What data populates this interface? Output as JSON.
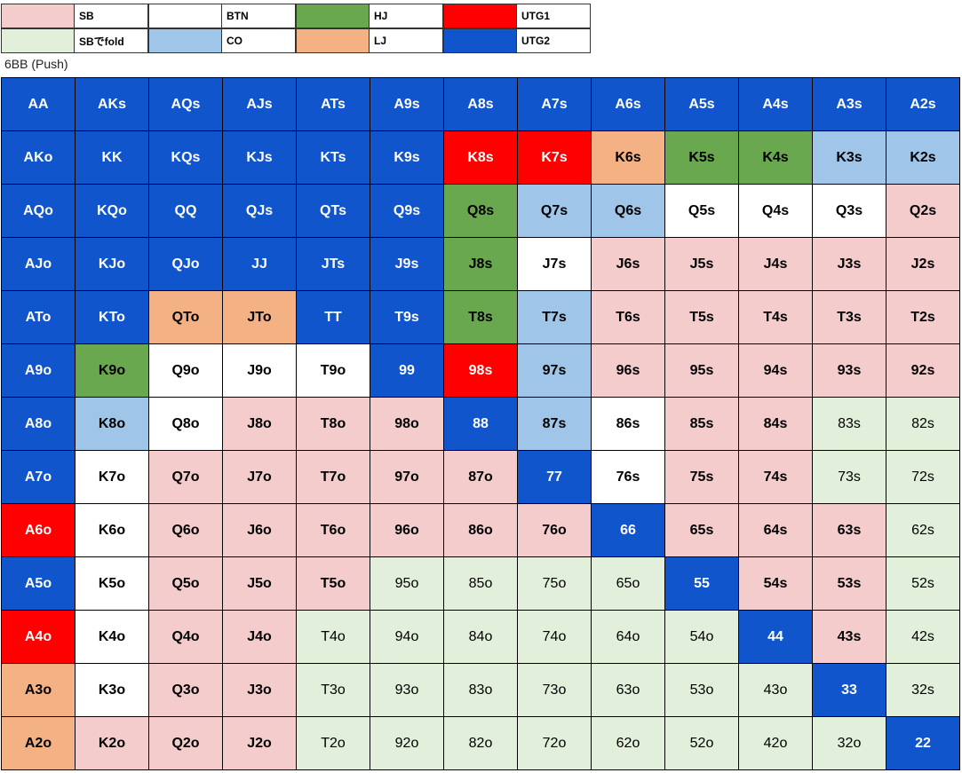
{
  "legend": [
    {
      "label": "SB",
      "color": "#f4cccc",
      "text_color": "#000000",
      "bold": true
    },
    {
      "label": "BTN",
      "color": "#ffffff",
      "text_color": "#000000",
      "bold": true
    },
    {
      "label": "HJ",
      "color": "#6aa84f",
      "text_color": "#000000",
      "bold": true
    },
    {
      "label": "UTG1",
      "color": "#ff0000",
      "text_color": "#ffffff",
      "bold": true
    },
    {
      "label": "SBでfold",
      "color": "#e2efda",
      "text_color": "#000000",
      "bold": false
    },
    {
      "label": "CO",
      "color": "#9fc5e8",
      "text_color": "#000000",
      "bold": true
    },
    {
      "label": "LJ",
      "color": "#f4b183",
      "text_color": "#000000",
      "bold": true
    },
    {
      "label": "UTG2",
      "color": "#1155cc",
      "text_color": "#ffffff",
      "bold": true
    }
  ],
  "caption": "6BB (Push)",
  "grid": {
    "rows": [
      [
        [
          "AA",
          "UTG2"
        ],
        [
          "AKs",
          "UTG2"
        ],
        [
          "AQs",
          "UTG2"
        ],
        [
          "AJs",
          "UTG2"
        ],
        [
          "ATs",
          "UTG2"
        ],
        [
          "A9s",
          "UTG2"
        ],
        [
          "A8s",
          "UTG2"
        ],
        [
          "A7s",
          "UTG2"
        ],
        [
          "A6s",
          "UTG2"
        ],
        [
          "A5s",
          "UTG2"
        ],
        [
          "A4s",
          "UTG2"
        ],
        [
          "A3s",
          "UTG2"
        ],
        [
          "A2s",
          "UTG2"
        ]
      ],
      [
        [
          "AKo",
          "UTG2"
        ],
        [
          "KK",
          "UTG2"
        ],
        [
          "KQs",
          "UTG2"
        ],
        [
          "KJs",
          "UTG2"
        ],
        [
          "KTs",
          "UTG2"
        ],
        [
          "K9s",
          "UTG2"
        ],
        [
          "K8s",
          "UTG1"
        ],
        [
          "K7s",
          "UTG1"
        ],
        [
          "K6s",
          "LJ"
        ],
        [
          "K5s",
          "HJ"
        ],
        [
          "K4s",
          "HJ"
        ],
        [
          "K3s",
          "CO"
        ],
        [
          "K2s",
          "CO"
        ]
      ],
      [
        [
          "AQo",
          "UTG2"
        ],
        [
          "KQo",
          "UTG2"
        ],
        [
          "QQ",
          "UTG2"
        ],
        [
          "QJs",
          "UTG2"
        ],
        [
          "QTs",
          "UTG2"
        ],
        [
          "Q9s",
          "UTG2"
        ],
        [
          "Q8s",
          "HJ"
        ],
        [
          "Q7s",
          "CO"
        ],
        [
          "Q6s",
          "CO"
        ],
        [
          "Q5s",
          "BTN"
        ],
        [
          "Q4s",
          "BTN"
        ],
        [
          "Q3s",
          "BTN"
        ],
        [
          "Q2s",
          "SB"
        ]
      ],
      [
        [
          "AJo",
          "UTG2"
        ],
        [
          "KJo",
          "UTG2"
        ],
        [
          "QJo",
          "UTG2"
        ],
        [
          "JJ",
          "UTG2"
        ],
        [
          "JTs",
          "UTG2"
        ],
        [
          "J9s",
          "UTG2"
        ],
        [
          "J8s",
          "HJ"
        ],
        [
          "J7s",
          "BTN"
        ],
        [
          "J6s",
          "SB"
        ],
        [
          "J5s",
          "SB"
        ],
        [
          "J4s",
          "SB"
        ],
        [
          "J3s",
          "SB"
        ],
        [
          "J2s",
          "SB"
        ]
      ],
      [
        [
          "ATo",
          "UTG2"
        ],
        [
          "KTo",
          "UTG2"
        ],
        [
          "QTo",
          "LJ"
        ],
        [
          "JTo",
          "LJ"
        ],
        [
          "TT",
          "UTG2"
        ],
        [
          "T9s",
          "UTG2"
        ],
        [
          "T8s",
          "HJ"
        ],
        [
          "T7s",
          "CO"
        ],
        [
          "T6s",
          "SB"
        ],
        [
          "T5s",
          "SB"
        ],
        [
          "T4s",
          "SB"
        ],
        [
          "T3s",
          "SB"
        ],
        [
          "T2s",
          "SB"
        ]
      ],
      [
        [
          "A9o",
          "UTG2"
        ],
        [
          "K9o",
          "HJ"
        ],
        [
          "Q9o",
          "BTN"
        ],
        [
          "J9o",
          "BTN"
        ],
        [
          "T9o",
          "BTN"
        ],
        [
          "99",
          "UTG2"
        ],
        [
          "98s",
          "UTG1"
        ],
        [
          "97s",
          "CO"
        ],
        [
          "96s",
          "SB"
        ],
        [
          "95s",
          "SB"
        ],
        [
          "94s",
          "SB"
        ],
        [
          "93s",
          "SB"
        ],
        [
          "92s",
          "SB"
        ]
      ],
      [
        [
          "A8o",
          "UTG2"
        ],
        [
          "K8o",
          "CO"
        ],
        [
          "Q8o",
          "BTN"
        ],
        [
          "J8o",
          "SB"
        ],
        [
          "T8o",
          "SB"
        ],
        [
          "98o",
          "SB"
        ],
        [
          "88",
          "UTG2"
        ],
        [
          "87s",
          "CO"
        ],
        [
          "86s",
          "BTN"
        ],
        [
          "85s",
          "SB"
        ],
        [
          "84s",
          "SB"
        ],
        [
          "83s",
          "SBでfold"
        ],
        [
          "82s",
          "SBでfold"
        ]
      ],
      [
        [
          "A7o",
          "UTG2"
        ],
        [
          "K7o",
          "BTN"
        ],
        [
          "Q7o",
          "SB"
        ],
        [
          "J7o",
          "SB"
        ],
        [
          "T7o",
          "SB"
        ],
        [
          "97o",
          "SB"
        ],
        [
          "87o",
          "SB"
        ],
        [
          "77",
          "UTG2"
        ],
        [
          "76s",
          "BTN"
        ],
        [
          "75s",
          "SB"
        ],
        [
          "74s",
          "SB"
        ],
        [
          "73s",
          "SBでfold"
        ],
        [
          "72s",
          "SBでfold"
        ]
      ],
      [
        [
          "A6o",
          "UTG1"
        ],
        [
          "K6o",
          "BTN"
        ],
        [
          "Q6o",
          "SB"
        ],
        [
          "J6o",
          "SB"
        ],
        [
          "T6o",
          "SB"
        ],
        [
          "96o",
          "SB"
        ],
        [
          "86o",
          "SB"
        ],
        [
          "76o",
          "SB"
        ],
        [
          "66",
          "UTG2"
        ],
        [
          "65s",
          "SB"
        ],
        [
          "64s",
          "SB"
        ],
        [
          "63s",
          "SB"
        ],
        [
          "62s",
          "SBでfold"
        ]
      ],
      [
        [
          "A5o",
          "UTG2"
        ],
        [
          "K5o",
          "BTN"
        ],
        [
          "Q5o",
          "SB"
        ],
        [
          "J5o",
          "SB"
        ],
        [
          "T5o",
          "SB"
        ],
        [
          "95o",
          "SBでfold"
        ],
        [
          "85o",
          "SBでfold"
        ],
        [
          "75o",
          "SBでfold"
        ],
        [
          "65o",
          "SBでfold"
        ],
        [
          "55",
          "UTG2"
        ],
        [
          "54s",
          "SB"
        ],
        [
          "53s",
          "SB"
        ],
        [
          "52s",
          "SBでfold"
        ]
      ],
      [
        [
          "A4o",
          "UTG1"
        ],
        [
          "K4o",
          "BTN"
        ],
        [
          "Q4o",
          "SB"
        ],
        [
          "J4o",
          "SB"
        ],
        [
          "T4o",
          "SBでfold"
        ],
        [
          "94o",
          "SBでfold"
        ],
        [
          "84o",
          "SBでfold"
        ],
        [
          "74o",
          "SBでfold"
        ],
        [
          "64o",
          "SBでfold"
        ],
        [
          "54o",
          "SBでfold"
        ],
        [
          "44",
          "UTG2"
        ],
        [
          "43s",
          "SB"
        ],
        [
          "42s",
          "SBでfold"
        ]
      ],
      [
        [
          "A3o",
          "LJ"
        ],
        [
          "K3o",
          "BTN"
        ],
        [
          "Q3o",
          "SB"
        ],
        [
          "J3o",
          "SB"
        ],
        [
          "T3o",
          "SBでfold"
        ],
        [
          "93o",
          "SBでfold"
        ],
        [
          "83o",
          "SBでfold"
        ],
        [
          "73o",
          "SBでfold"
        ],
        [
          "63o",
          "SBでfold"
        ],
        [
          "53o",
          "SBでfold"
        ],
        [
          "43o",
          "SBでfold"
        ],
        [
          "33",
          "UTG2"
        ],
        [
          "32s",
          "SBでfold"
        ]
      ],
      [
        [
          "A2o",
          "LJ"
        ],
        [
          "K2o",
          "SB"
        ],
        [
          "Q2o",
          "SB"
        ],
        [
          "J2o",
          "SB"
        ],
        [
          "T2o",
          "SBでfold"
        ],
        [
          "92o",
          "SBでfold"
        ],
        [
          "82o",
          "SBでfold"
        ],
        [
          "72o",
          "SBでfold"
        ],
        [
          "62o",
          "SBでfold"
        ],
        [
          "52o",
          "SBでfold"
        ],
        [
          "42o",
          "SBでfold"
        ],
        [
          "32o",
          "SBでfold"
        ],
        [
          "22",
          "UTG2"
        ]
      ]
    ]
  }
}
